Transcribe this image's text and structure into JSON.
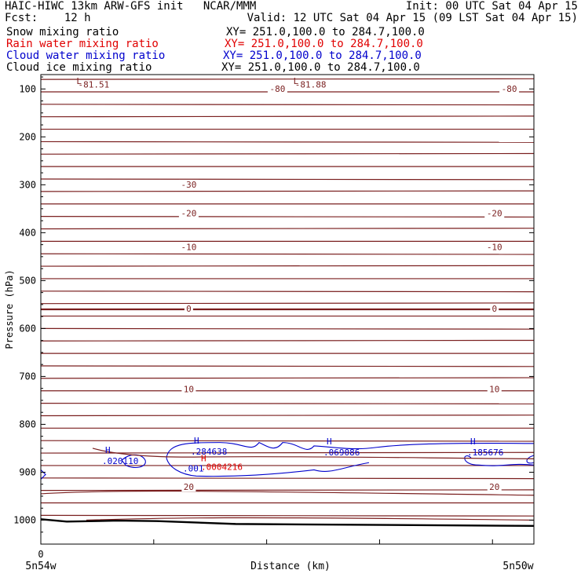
{
  "header": {
    "title_left": "HAIC-HIWC 13km ARW-GFS init   NCAR/MMM",
    "init": "Init: 00 UTC Sat 04 Apr 15",
    "fcst": "Fcst:    12 h",
    "valid": "Valid: 12 UTC Sat 04 Apr 15 (09 LST Sat 04 Apr 15)"
  },
  "fields": [
    {
      "name": "Snow mixing ratio",
      "xy": "XY= 251.0,100.0 to 284.7,100.0",
      "color": "#000000"
    },
    {
      "name": "Rain water mixing ratio",
      "xy": "XY= 251.0,100.0 to 284.7,100.0",
      "color": "#e00000"
    },
    {
      "name": "Cloud water mixing ratio",
      "xy": "XY= 251.0,100.0 to 284.7,100.0",
      "color": "#0000cc"
    },
    {
      "name": "Cloud ice mixing ratio",
      "xy": "XY= 251.0,100.0 to 284.7,100.0",
      "color": "#000000"
    }
  ],
  "chart_data": {
    "type": "cross-section",
    "xlabel": "Distance (km)",
    "ylabel": "Pressure (hPa)",
    "x_ticks": [
      "0"
    ],
    "x_end_labels": [
      "5n54w",
      "5n50w"
    ],
    "y_ticks": [
      100,
      200,
      300,
      400,
      500,
      600,
      700,
      800,
      900,
      1000
    ],
    "ylim": [
      1050,
      70
    ],
    "temperature_contours": {
      "color": "#7a1f1f",
      "labels": [
        {
          "text": "-80",
          "p": 101,
          "x": 0.48
        },
        {
          "text": "-80",
          "p": 101,
          "x": 0.95
        },
        {
          "text": "-30",
          "p": 301,
          "x": 0.3
        },
        {
          "text": "-20",
          "p": 361,
          "x": 0.3
        },
        {
          "text": "-20",
          "p": 361,
          "x": 0.92
        },
        {
          "text": "-10",
          "p": 431,
          "x": 0.3
        },
        {
          "text": "-10",
          "p": 431,
          "x": 0.92
        },
        {
          "text": "0",
          "p": 560,
          "x": 0.3
        },
        {
          "text": "0",
          "p": 560,
          "x": 0.92
        },
        {
          "text": "10",
          "p": 728,
          "x": 0.3
        },
        {
          "text": "10",
          "p": 728,
          "x": 0.92
        },
        {
          "text": "20",
          "p": 932,
          "x": 0.3
        },
        {
          "text": "20",
          "p": 932,
          "x": 0.92
        }
      ],
      "minima": [
        {
          "mark": "L",
          "value": "-81.51",
          "x": 0.12
        },
        {
          "mark": "L",
          "value": "-81.88",
          "x": 0.56
        }
      ]
    },
    "cloud_water_maxima": [
      {
        "mark": "H",
        "value": ".020110",
        "x": 0.12
      },
      {
        "mark": "H",
        "value": ".284638",
        "x": 0.32
      },
      {
        "mark": "H",
        "value": ".001",
        "x": 0.29
      },
      {
        "mark": "H",
        "value": ".069086",
        "x": 0.58
      },
      {
        "mark": "H",
        "value": ".185676",
        "x": 0.89
      }
    ],
    "rain_water_maxima": [
      {
        "mark": "H",
        "value": ".0004216",
        "x": 0.34
      }
    ]
  }
}
